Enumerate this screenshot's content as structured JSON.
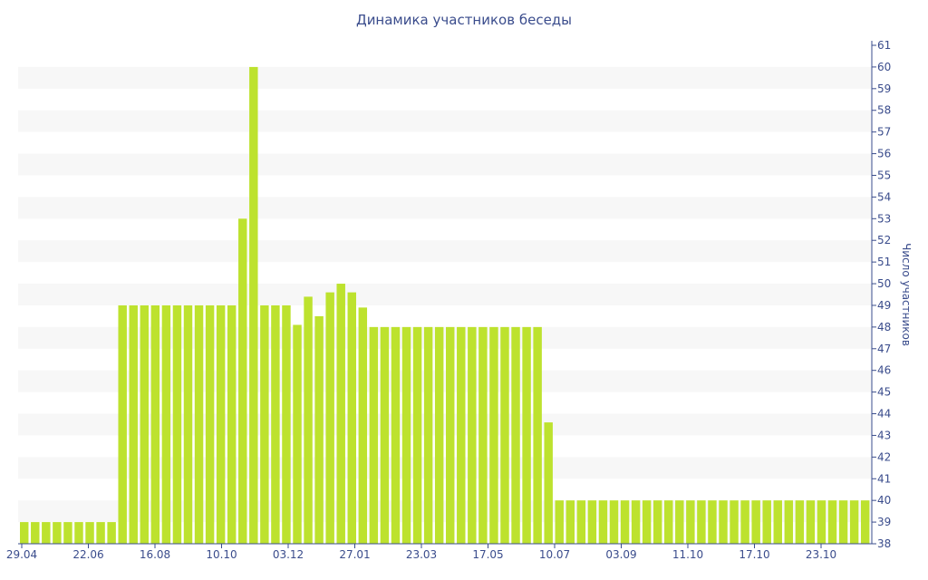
{
  "chart_data": {
    "type": "bar",
    "title": "Динамика участников беседы",
    "ylabel": "Число участников",
    "xlabel": "",
    "ylim": [
      38,
      61
    ],
    "y_axis_side": "right",
    "grid": "alternating horizontal bands",
    "bar_color": "#bde22e",
    "band_color": "#f7f7f7",
    "text_color": "#3a4c8c",
    "x_tick_labels": [
      "29.04",
      "22.06",
      "16.08",
      "10.10",
      "03.12",
      "27.01",
      "23.03",
      "17.05",
      "10.07",
      "03.09",
      "11.10",
      "17.10",
      "23.10"
    ],
    "values": [
      39,
      39,
      39,
      39,
      39,
      39,
      39,
      39,
      39,
      49,
      49,
      49,
      49,
      49,
      49,
      49,
      49,
      49,
      49,
      49,
      53,
      60,
      49,
      49,
      49,
      48.1,
      49.4,
      48.5,
      49.6,
      50,
      49.6,
      48.9,
      48,
      48,
      48,
      48,
      48,
      48,
      48,
      48,
      48,
      48,
      48,
      48,
      48,
      48,
      48,
      48,
      43.6,
      40,
      40,
      40,
      40,
      40,
      40,
      40,
      40,
      40,
      40,
      40,
      40,
      40,
      40,
      40,
      40,
      40,
      40,
      40,
      40,
      40,
      40,
      40,
      40,
      40,
      40,
      40,
      40,
      40
    ]
  }
}
